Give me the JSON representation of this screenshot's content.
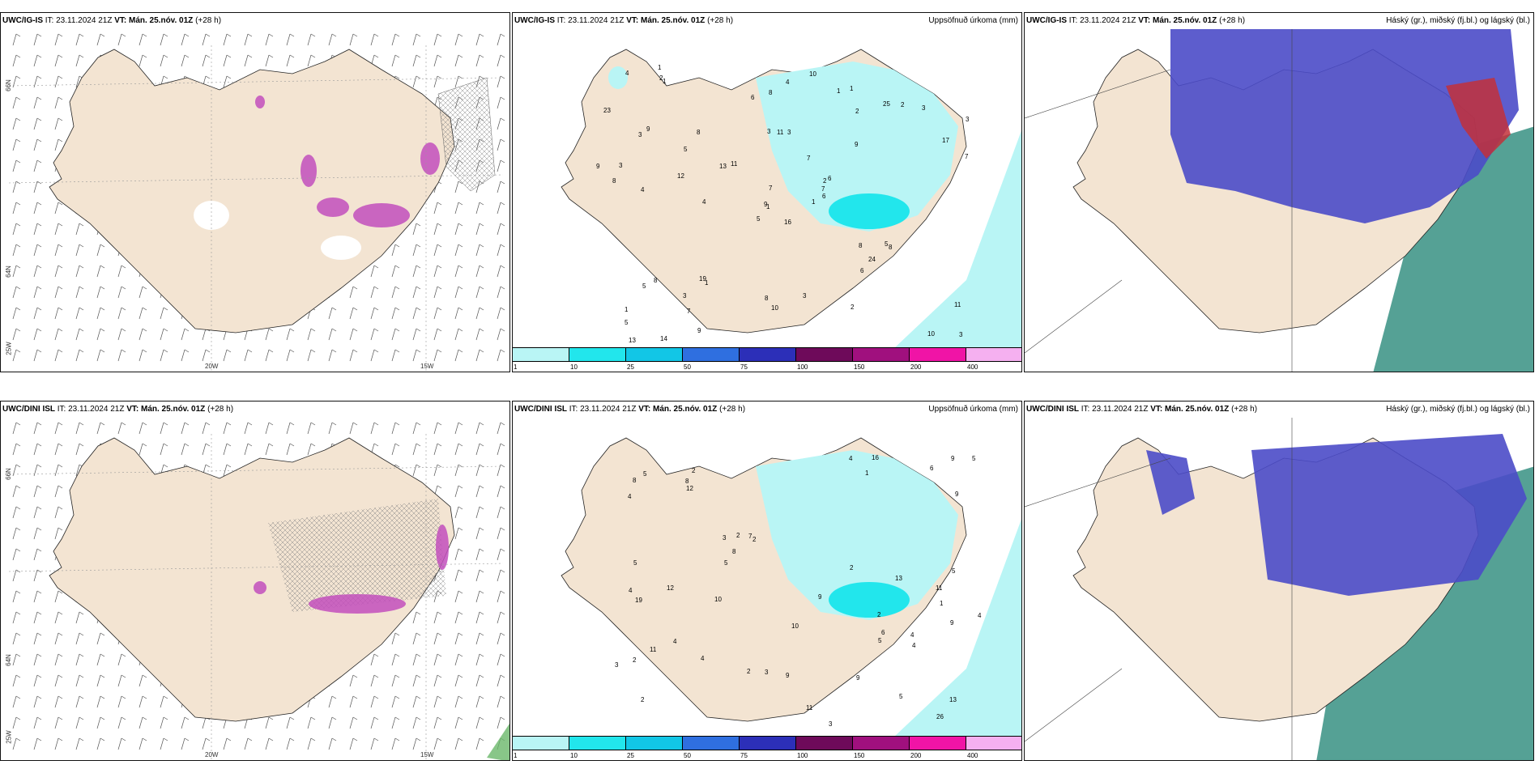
{
  "panels": [
    {
      "model": "UWC/IG-IS",
      "it": "IT: 23.11.2024 21Z",
      "vt": "VT: Mán. 25.nóv. 01Z",
      "lead": "(+28 h)",
      "right": ""
    },
    {
      "model": "UWC/IG-IS",
      "it": "IT: 23.11.2024 21Z",
      "vt": "VT: Mán. 25.nóv. 01Z",
      "lead": "(+28 h)",
      "right": "Uppsöfnuð úrkoma (mm)"
    },
    {
      "model": "UWC/IG-IS",
      "it": "IT: 23.11.2024 21Z",
      "vt": "VT: Mán. 25.nóv. 01Z",
      "lead": "(+28 h)",
      "right": "Háský (gr.), miðský (fj.bl.) og lágský (bl.)"
    },
    {
      "model": "UWC/DINI ISL",
      "it": "IT: 23.11.2024 21Z",
      "vt": "VT: Mán. 25.nóv. 01Z",
      "lead": "(+28 h)",
      "right": ""
    },
    {
      "model": "UWC/DINI ISL",
      "it": "IT: 23.11.2024 21Z",
      "vt": "VT: Mán. 25.nóv. 01Z",
      "lead": "(+28 h)",
      "right": "Uppsöfnuð úrkoma (mm)"
    },
    {
      "model": "UWC/DINI ISL",
      "it": "IT: 23.11.2024 21Z",
      "vt": "VT: Mán. 25.nóv. 01Z",
      "lead": "(+28 h)",
      "right": "Háský (gr.), miðský (fj.bl.) og lágský (bl.)"
    }
  ],
  "axis": {
    "lat66": "66N",
    "lat64": "64N",
    "lon25": "25W",
    "lon20": "20W",
    "lon15": "15W"
  },
  "colorbar": {
    "labels": [
      "1",
      "10",
      "25",
      "50",
      "75",
      "100",
      "150",
      "200",
      "400"
    ],
    "colors": [
      "#b9f5f5",
      "#22e6ec",
      "#12c6e6",
      "#2f6fe0",
      "#2c2fb8",
      "#6e0a5a",
      "#a0107e",
      "#f014a6",
      "#f5b0f0"
    ]
  },
  "precip_ig": [
    "16",
    "3",
    "1",
    "1",
    "2",
    "1",
    "1",
    "3",
    "2",
    "1",
    "1",
    "3",
    "4",
    "3",
    "5",
    "9",
    "14",
    "3",
    "7",
    "8",
    "11",
    "5",
    "7",
    "11",
    "6",
    "8",
    "9",
    "8",
    "8",
    "8",
    "7",
    "9",
    "8",
    "7",
    "8",
    "25",
    "19",
    "10",
    "11",
    "5",
    "10",
    "13",
    "12",
    "6",
    "9",
    "9",
    "7",
    "13",
    "10",
    "6",
    "5",
    "17",
    "23",
    "24",
    "2",
    "3",
    "2",
    "4",
    "3",
    "3",
    "4",
    "4",
    "3",
    "5",
    "2",
    "1",
    "1",
    "6"
  ],
  "precip_dini": [
    "2",
    "1",
    "2",
    "2",
    "2",
    "5",
    "2",
    "1",
    "3",
    "3",
    "4",
    "4",
    "8",
    "13",
    "2",
    "5",
    "10",
    "9",
    "7",
    "4",
    "5",
    "6",
    "5",
    "9",
    "4",
    "8",
    "6",
    "19",
    "12",
    "13",
    "11",
    "9",
    "8",
    "10",
    "11",
    "4",
    "5",
    "12",
    "9",
    "11",
    "9",
    "16",
    "26",
    "3",
    "4",
    "4",
    "3",
    "5",
    "2",
    "5",
    "4",
    "2",
    "9"
  ]
}
